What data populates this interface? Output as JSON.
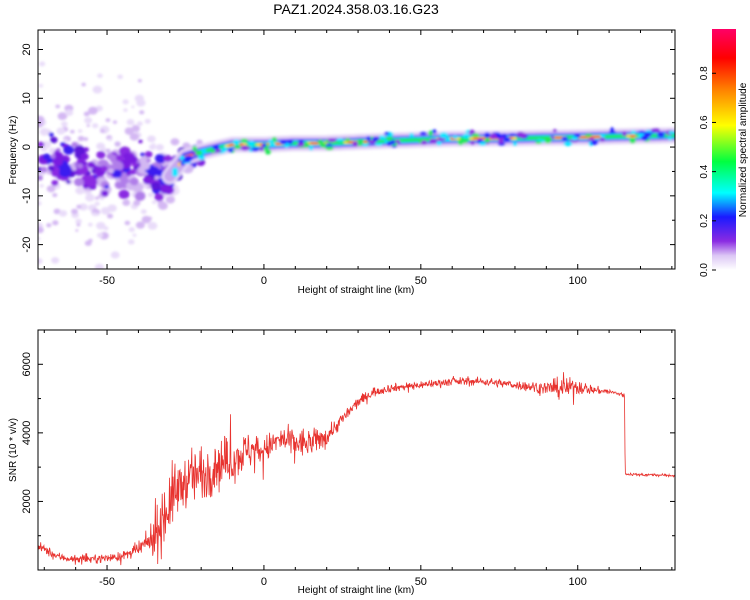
{
  "title": "PAZ1.2024.358.03.16.G23",
  "chart_data": [
    {
      "type": "heatmap",
      "xlabel": "Height of straight line (km)",
      "ylabel": "Frequency (Hz)",
      "xlim": [
        -72,
        131
      ],
      "ylim": [
        -25,
        24
      ],
      "xticks": [
        -50,
        0,
        50,
        100
      ],
      "yticks": [
        -20,
        -10,
        0,
        10,
        20
      ],
      "ridge_frequency": {
        "x": [
          -72,
          -60,
          -50,
          -40,
          -35,
          -30,
          -25,
          -20,
          -10,
          0,
          10,
          20,
          40,
          60,
          80,
          100,
          120,
          131
        ],
        "y": [
          -3,
          -4,
          -5,
          -5,
          -6,
          -6,
          -2,
          -1,
          0.5,
          0.5,
          0.8,
          0.8,
          1.3,
          1.7,
          1.8,
          2,
          2.3,
          2.4
        ]
      },
      "colorbar": {
        "label": "Normalized spectral amplitude",
        "ticks": [
          "0.0",
          "0.2",
          "0.4",
          "0.6",
          "0.8"
        ],
        "range": [
          0,
          1
        ]
      }
    },
    {
      "type": "line",
      "xlabel": "Height of straight line (km)",
      "ylabel": "SNR (10 * v/v)",
      "xlim": [
        -72,
        131
      ],
      "ylim": [
        0,
        7000
      ],
      "xticks": [
        -50,
        0,
        50,
        100
      ],
      "yticks": [
        2000,
        4000,
        6000
      ],
      "color": "#e8332f",
      "x": [
        -72,
        -66,
        -60,
        -50,
        -45,
        -40,
        -37,
        -34,
        -32,
        -30,
        -28,
        -25,
        -20,
        -15,
        -10,
        -5,
        0,
        5,
        10,
        15,
        20,
        25,
        30,
        35,
        40,
        50,
        60,
        70,
        80,
        85,
        90,
        95,
        100,
        105,
        110,
        114.9,
        115.1,
        120,
        125,
        131
      ],
      "y": [
        700,
        400,
        300,
        350,
        400,
        600,
        800,
        1100,
        1600,
        2000,
        2300,
        2600,
        2800,
        3100,
        3200,
        3500,
        3500,
        3800,
        3700,
        3700,
        3900,
        4400,
        4900,
        5200,
        5300,
        5400,
        5500,
        5500,
        5400,
        5350,
        5300,
        5300,
        5350,
        5250,
        5200,
        5100,
        2800,
        2780,
        2770,
        2750
      ],
      "noise_amplitude": [
        180,
        150,
        150,
        150,
        160,
        250,
        400,
        900,
        1300,
        1300,
        1000,
        900,
        1100,
        1000,
        800,
        700,
        500,
        500,
        600,
        500,
        350,
        250,
        200,
        180,
        150,
        150,
        150,
        150,
        150,
        200,
        250,
        400,
        300,
        150,
        100,
        80,
        50,
        50,
        50,
        50
      ]
    }
  ]
}
